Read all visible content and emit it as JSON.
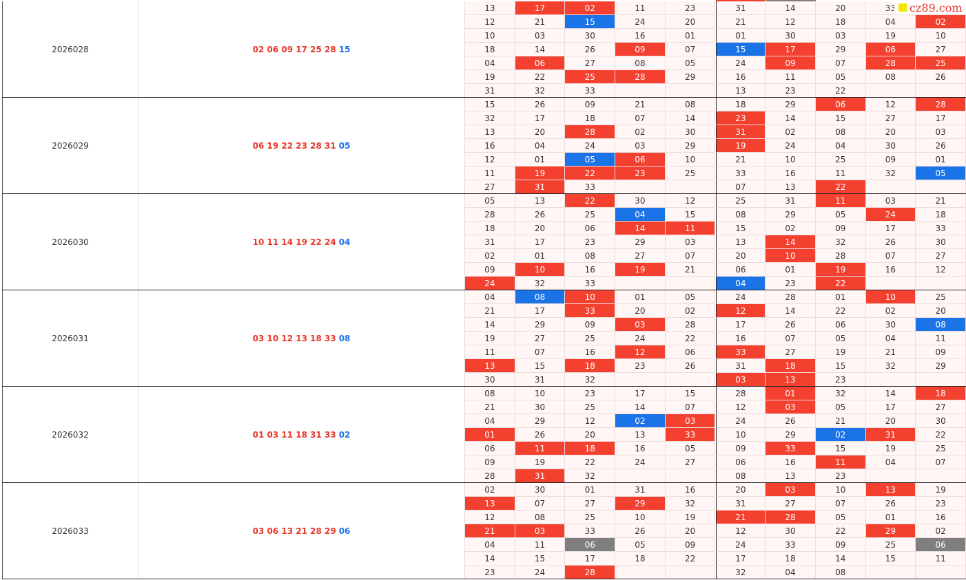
{
  "watermark": "cz89.com",
  "colors": {
    "r": "#f4402f",
    "b": "#1b73e8",
    "g": "#7f7f7f"
  },
  "periods": [
    {
      "period": "2026028",
      "reds": "02 06 09 17 25 28",
      "blue": "15",
      "grid": [
        [
          "13",
          "17",
          "02",
          "11",
          "23",
          "31",
          "14",
          "20",
          "33",
          null
        ],
        [
          "12",
          "21",
          "15",
          "24",
          "20",
          "21",
          "12",
          "18",
          "04",
          "02"
        ],
        [
          "10",
          "03",
          "30",
          "16",
          "01",
          "01",
          "30",
          "03",
          "19",
          "10"
        ],
        [
          "18",
          "14",
          "26",
          "09",
          "07",
          "15",
          "17",
          "29",
          "06",
          "27"
        ],
        [
          "04",
          "06",
          "27",
          "08",
          "05",
          "24",
          "09",
          "07",
          "28",
          "25"
        ],
        [
          "19",
          "22",
          "25",
          "28",
          "29",
          "16",
          "11",
          "05",
          "08",
          "26"
        ],
        [
          "31",
          "32",
          "33",
          null,
          null,
          "13",
          "23",
          "22",
          null,
          null
        ]
      ],
      "marks": [
        "nrrnnnnnnn",
        "nnbnnnnnnr",
        "nnnnnnnnnn",
        "nnnrnbrnrn",
        "nrnnnnrnrr",
        "nnrrnnnnnn",
        "nnnnnnnnnn"
      ]
    },
    {
      "period": "2026029",
      "reds": "06 19 22 23 28 31",
      "blue": "05",
      "grid": [
        [
          "15",
          "26",
          "09",
          "21",
          "08",
          "18",
          "29",
          "06",
          "12",
          "28"
        ],
        [
          "32",
          "17",
          "18",
          "07",
          "14",
          "23",
          "14",
          "15",
          "27",
          "17"
        ],
        [
          "13",
          "20",
          "28",
          "02",
          "30",
          "31",
          "02",
          "08",
          "20",
          "03"
        ],
        [
          "16",
          "04",
          "24",
          "03",
          "29",
          "19",
          "24",
          "04",
          "30",
          "26"
        ],
        [
          "12",
          "01",
          "05",
          "06",
          "10",
          "21",
          "10",
          "25",
          "09",
          "01"
        ],
        [
          "11",
          "19",
          "22",
          "23",
          "25",
          "33",
          "16",
          "11",
          "32",
          "05"
        ],
        [
          "27",
          "31",
          "33",
          null,
          null,
          "07",
          "13",
          "22",
          null,
          null
        ]
      ],
      "marks": [
        "nnnnnnnrnr",
        "nnnnnrnnnn",
        "nnrnnrnnnn",
        "nnnnnrnnnn",
        "nnbrnnnnnn",
        "nrrrnnnnnb",
        "nrnnnnnrnn"
      ]
    },
    {
      "period": "2026030",
      "reds": "10 11 14 19 22 24",
      "blue": "04",
      "grid": [
        [
          "05",
          "13",
          "22",
          "30",
          "12",
          "25",
          "31",
          "11",
          "03",
          "21"
        ],
        [
          "28",
          "26",
          "25",
          "04",
          "15",
          "08",
          "29",
          "05",
          "24",
          "18"
        ],
        [
          "18",
          "20",
          "06",
          "14",
          "11",
          "15",
          "02",
          "09",
          "17",
          "33"
        ],
        [
          "31",
          "17",
          "23",
          "29",
          "03",
          "13",
          "14",
          "32",
          "26",
          "30"
        ],
        [
          "02",
          "01",
          "08",
          "27",
          "07",
          "20",
          "10",
          "28",
          "07",
          "27"
        ],
        [
          "09",
          "10",
          "16",
          "19",
          "21",
          "06",
          "01",
          "19",
          "16",
          "12"
        ],
        [
          "24",
          "32",
          "33",
          null,
          null,
          "04",
          "23",
          "22",
          null,
          null
        ]
      ],
      "marks": [
        "nnrnnnnrnn",
        "nnnbnnnnrn",
        "nnnrrnnnnn",
        "nnnnnnrnnn",
        "nnnnnnrnnn",
        "nrnrnnnrnn",
        "rnnnnbnrnn"
      ]
    },
    {
      "period": "2026031",
      "reds": "03 10 12 13 18 33",
      "blue": "08",
      "grid": [
        [
          "04",
          "08",
          "10",
          "01",
          "05",
          "24",
          "28",
          "01",
          "10",
          "25"
        ],
        [
          "21",
          "17",
          "33",
          "20",
          "02",
          "12",
          "14",
          "22",
          "02",
          "20"
        ],
        [
          "14",
          "29",
          "09",
          "03",
          "28",
          "17",
          "26",
          "06",
          "30",
          "08"
        ],
        [
          "19",
          "27",
          "25",
          "24",
          "22",
          "16",
          "07",
          "05",
          "04",
          "11"
        ],
        [
          "11",
          "07",
          "16",
          "12",
          "06",
          "33",
          "27",
          "19",
          "21",
          "09"
        ],
        [
          "13",
          "15",
          "18",
          "23",
          "26",
          "31",
          "18",
          "15",
          "32",
          "29"
        ],
        [
          "30",
          "31",
          "32",
          null,
          null,
          "03",
          "13",
          "23",
          null,
          null
        ]
      ],
      "marks": [
        "nbrnnnnnrn",
        "nnrnnrnnnn",
        "nnnrnnnnnb",
        "nnnnnnnnnn",
        "nnnrnrnnnn",
        "rnrnnnrnnn",
        "nnnnnrrnnn"
      ]
    },
    {
      "period": "2026032",
      "reds": "01 03 11 18 31 33",
      "blue": "02",
      "grid": [
        [
          "08",
          "10",
          "23",
          "17",
          "15",
          "28",
          "01",
          "32",
          "14",
          "18"
        ],
        [
          "21",
          "30",
          "25",
          "14",
          "07",
          "12",
          "03",
          "05",
          "17",
          "27"
        ],
        [
          "04",
          "29",
          "12",
          "02",
          "03",
          "24",
          "26",
          "21",
          "20",
          "30"
        ],
        [
          "01",
          "26",
          "20",
          "13",
          "33",
          "10",
          "29",
          "02",
          "31",
          "22"
        ],
        [
          "06",
          "11",
          "18",
          "16",
          "05",
          "09",
          "33",
          "15",
          "19",
          "25"
        ],
        [
          "09",
          "19",
          "22",
          "24",
          "27",
          "06",
          "16",
          "11",
          "04",
          "07"
        ],
        [
          "28",
          "31",
          "32",
          null,
          null,
          "08",
          "13",
          "23",
          null,
          null
        ]
      ],
      "marks": [
        "nnnnnnrnnr",
        "nnnnnnrnnn",
        "nnnbrnnnnn",
        "rnnnrnnbrn",
        "nrrnnnrnnn",
        "nnnnnnnrnn",
        "nrnnnnnnnn"
      ]
    },
    {
      "period": "2026033",
      "reds": "03 06 13 21 28 29",
      "blue": "06",
      "grid": [
        [
          "02",
          "30",
          "01",
          "31",
          "16",
          "20",
          "03",
          "10",
          "13",
          "19"
        ],
        [
          "13",
          "07",
          "27",
          "29",
          "32",
          "31",
          "27",
          "07",
          "26",
          "23"
        ],
        [
          "12",
          "08",
          "25",
          "10",
          "19",
          "21",
          "28",
          "05",
          "01",
          "16"
        ],
        [
          "21",
          "03",
          "33",
          "26",
          "20",
          "12",
          "30",
          "22",
          "29",
          "02"
        ],
        [
          "04",
          "11",
          "06",
          "05",
          "09",
          "24",
          "33",
          "09",
          "25",
          "06"
        ],
        [
          "14",
          "15",
          "17",
          "18",
          "22",
          "17",
          "18",
          "14",
          "15",
          "11"
        ],
        [
          "23",
          "24",
          "28",
          null,
          null,
          "32",
          "04",
          "08",
          null,
          null
        ]
      ],
      "marks": [
        "nnnnnnrnrn",
        "rnnrnnnnnn",
        "nnnnnrrnnn",
        "rrnnnnnnrn",
        "nngnnnnnng",
        "nnnnnnnnnn",
        "nnrnnnnnnn"
      ]
    }
  ]
}
